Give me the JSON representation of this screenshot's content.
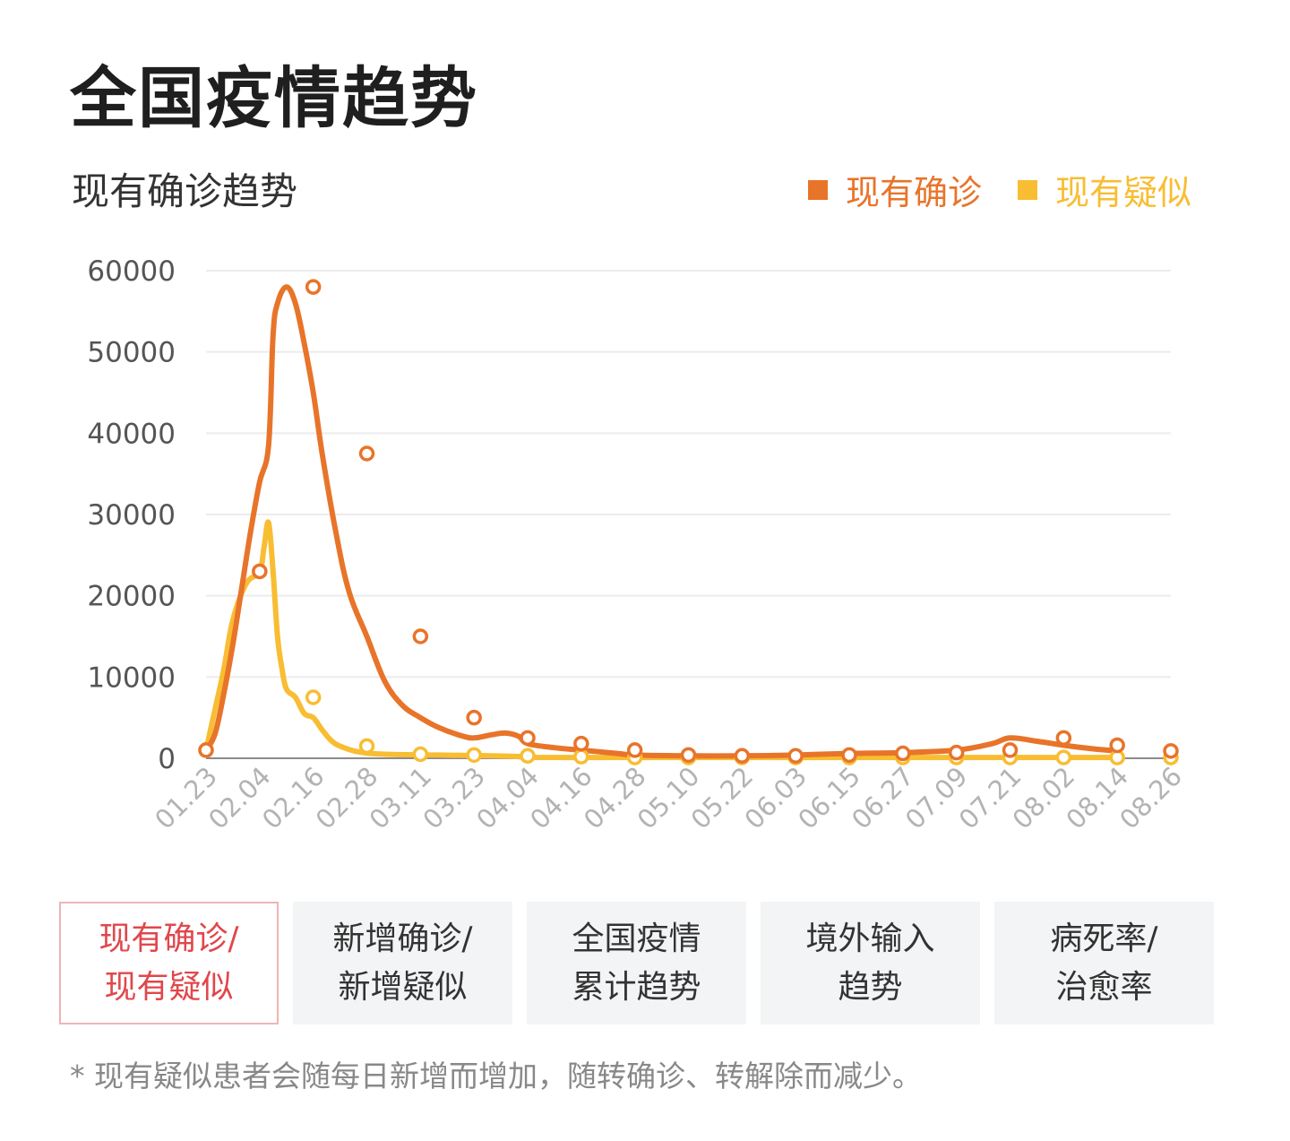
{
  "page": {
    "title": "全国疫情趋势"
  },
  "chart_data": {
    "type": "line",
    "title": "现有确诊趋势",
    "ylim": [
      0,
      60000
    ],
    "yticks": [
      "60000",
      "50000",
      "40000",
      "30000",
      "20000",
      "10000",
      "0"
    ],
    "xticks": [
      "01.23",
      "02.04",
      "02.16",
      "02.28",
      "03.11",
      "03.23",
      "04.04",
      "04.16",
      "04.28",
      "05.10",
      "05.22",
      "06.03",
      "06.15",
      "06.27",
      "07.09",
      "07.21",
      "08.02",
      "08.14",
      "08.26"
    ],
    "grid": true,
    "legend_position": "top-right",
    "series": [
      {
        "name": "现有确诊",
        "color": "#e8742a",
        "values": [
          1000,
          23000,
          58000,
          37500,
          15000,
          5000,
          2500,
          1800,
          1000,
          400,
          300,
          300,
          400,
          600,
          700,
          1000,
          2500,
          1600,
          900
        ],
        "detail": [
          [
            0,
            1000
          ],
          [
            2,
            3000
          ],
          [
            4,
            8000
          ],
          [
            6,
            14000
          ],
          [
            8,
            21000
          ],
          [
            10,
            28000
          ],
          [
            12,
            34000
          ],
          [
            14,
            38500
          ],
          [
            15,
            52000
          ],
          [
            16,
            56000
          ],
          [
            18,
            58000
          ],
          [
            20,
            56000
          ],
          [
            22,
            51000
          ],
          [
            24,
            45000
          ],
          [
            26,
            37500
          ],
          [
            29,
            28000
          ],
          [
            32,
            20500
          ],
          [
            36,
            15000
          ],
          [
            40,
            9500
          ],
          [
            44,
            6500
          ],
          [
            48,
            5000
          ],
          [
            52,
            3800
          ],
          [
            57,
            2800
          ],
          [
            60,
            2500
          ],
          [
            64,
            2900
          ],
          [
            67,
            3100
          ],
          [
            70,
            2700
          ],
          [
            72,
            1800
          ],
          [
            78,
            1300
          ],
          [
            84,
            1000
          ],
          [
            92,
            600
          ],
          [
            96,
            400
          ],
          [
            108,
            300
          ],
          [
            120,
            300
          ],
          [
            132,
            400
          ],
          [
            144,
            600
          ],
          [
            156,
            700
          ],
          [
            168,
            1000
          ],
          [
            176,
            1800
          ],
          [
            180,
            2500
          ],
          [
            186,
            2100
          ],
          [
            192,
            1600
          ],
          [
            198,
            1200
          ],
          [
            204,
            900
          ]
        ]
      },
      {
        "name": "现有疑似",
        "color": "#f8bd32",
        "values": [
          1000,
          23000,
          7500,
          1500,
          500,
          400,
          300,
          200,
          100,
          100,
          100,
          100,
          100,
          100,
          100,
          100,
          100,
          100,
          100
        ],
        "detail": [
          [
            0,
            1000
          ],
          [
            2,
            6000
          ],
          [
            4,
            11000
          ],
          [
            6,
            17000
          ],
          [
            9,
            21500
          ],
          [
            12,
            23000
          ],
          [
            13,
            26000
          ],
          [
            14,
            29000
          ],
          [
            15,
            23000
          ],
          [
            16,
            15000
          ],
          [
            17,
            11000
          ],
          [
            18,
            8500
          ],
          [
            20,
            7500
          ],
          [
            22,
            5500
          ],
          [
            24,
            5000
          ],
          [
            26,
            3500
          ],
          [
            28,
            2200
          ],
          [
            30,
            1500
          ],
          [
            34,
            800
          ],
          [
            40,
            500
          ],
          [
            52,
            400
          ],
          [
            64,
            300
          ],
          [
            72,
            200
          ],
          [
            84,
            100
          ],
          [
            204,
            100
          ]
        ]
      }
    ]
  },
  "tabs": [
    {
      "line1": "现有确诊/",
      "line2": "现有疑似",
      "active": true
    },
    {
      "line1": "新增确诊/",
      "line2": "新增疑似",
      "active": false
    },
    {
      "line1": "全国疫情",
      "line2": "累计趋势",
      "active": false
    },
    {
      "line1": "境外输入",
      "line2": "趋势",
      "active": false
    },
    {
      "line1": "病死率/",
      "line2": "治愈率",
      "active": false
    }
  ],
  "footnote": "* 现有疑似患者会随每日新增而增加，随转确诊、转解除而减少。"
}
